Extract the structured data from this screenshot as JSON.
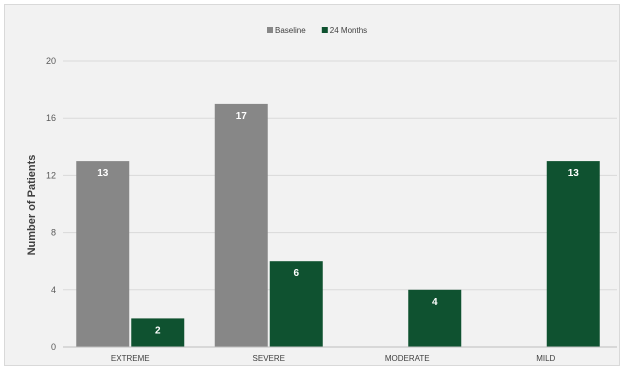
{
  "chart_data": {
    "type": "bar",
    "categories": [
      "EXTREME",
      "SEVERE",
      "MODERATE",
      "MILD"
    ],
    "series": [
      {
        "name": "Baseline",
        "values": [
          13,
          17,
          0,
          0
        ],
        "color": "#878787"
      },
      {
        "name": "24 Months",
        "values": [
          2,
          6,
          4,
          13
        ],
        "color": "#0f5230"
      }
    ],
    "value_labels": [
      [
        "13",
        "17",
        "",
        ""
      ],
      [
        "2",
        "6",
        "4",
        "13"
      ]
    ],
    "title": "",
    "xlabel": "",
    "ylabel": "Number of Patients",
    "ylim": [
      0,
      20
    ],
    "yticks": [
      0,
      4,
      8,
      12,
      16,
      20
    ],
    "grid": true,
    "legend_position": "top-center"
  }
}
